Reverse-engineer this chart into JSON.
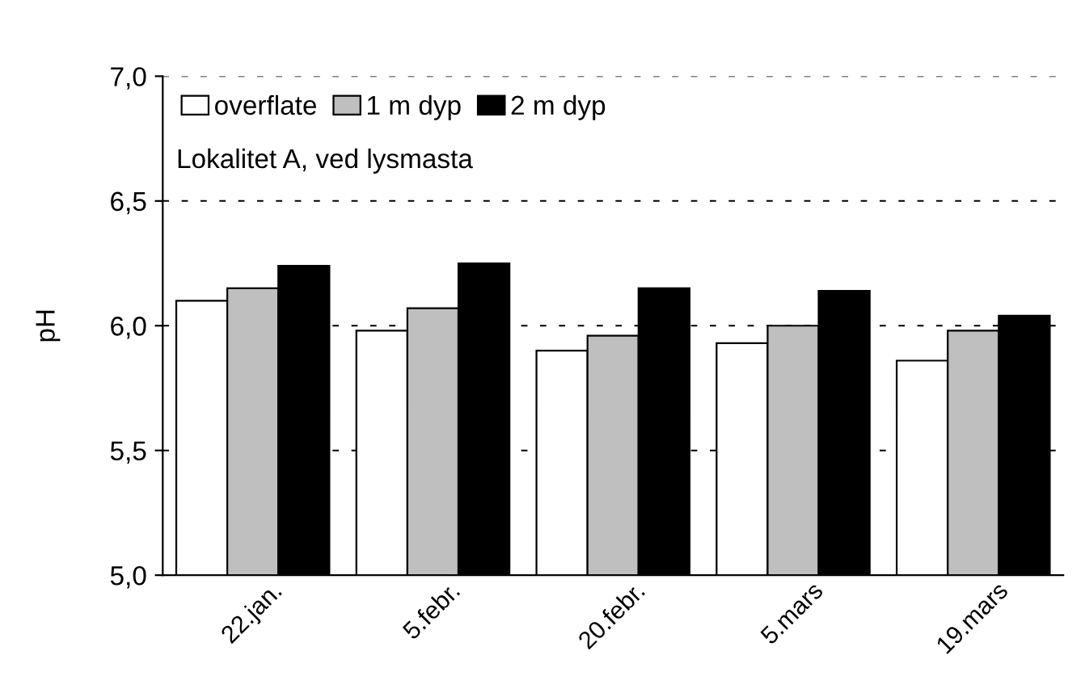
{
  "chart_data": {
    "type": "bar",
    "ylabel": "pH",
    "categories": [
      "22.jan.",
      "5.febr.",
      "20.febr.",
      "5.mars",
      "19.mars"
    ],
    "series": [
      {
        "name": "overflate",
        "color": "#ffffff",
        "values": [
          6.1,
          5.98,
          5.9,
          5.93,
          5.86
        ]
      },
      {
        "name": "1 m dyp",
        "color": "#bfbfbf",
        "values": [
          6.15,
          6.07,
          5.96,
          6.0,
          5.98
        ]
      },
      {
        "name": "2 m dyp",
        "color": "#000000",
        "values": [
          6.24,
          6.25,
          6.15,
          6.14,
          6.04
        ]
      }
    ],
    "ylim": [
      5.0,
      7.0
    ],
    "yticks": [
      {
        "value": 5.0,
        "label": "5,0"
      },
      {
        "value": 5.5,
        "label": "5,5"
      },
      {
        "value": 6.0,
        "label": "6,0"
      },
      {
        "value": 6.5,
        "label": "6,5"
      },
      {
        "value": 7.0,
        "label": "7,0"
      }
    ],
    "grid": "y",
    "legend": "top left",
    "annotations": [
      "Lokalitet A, ved lysmasta"
    ]
  }
}
